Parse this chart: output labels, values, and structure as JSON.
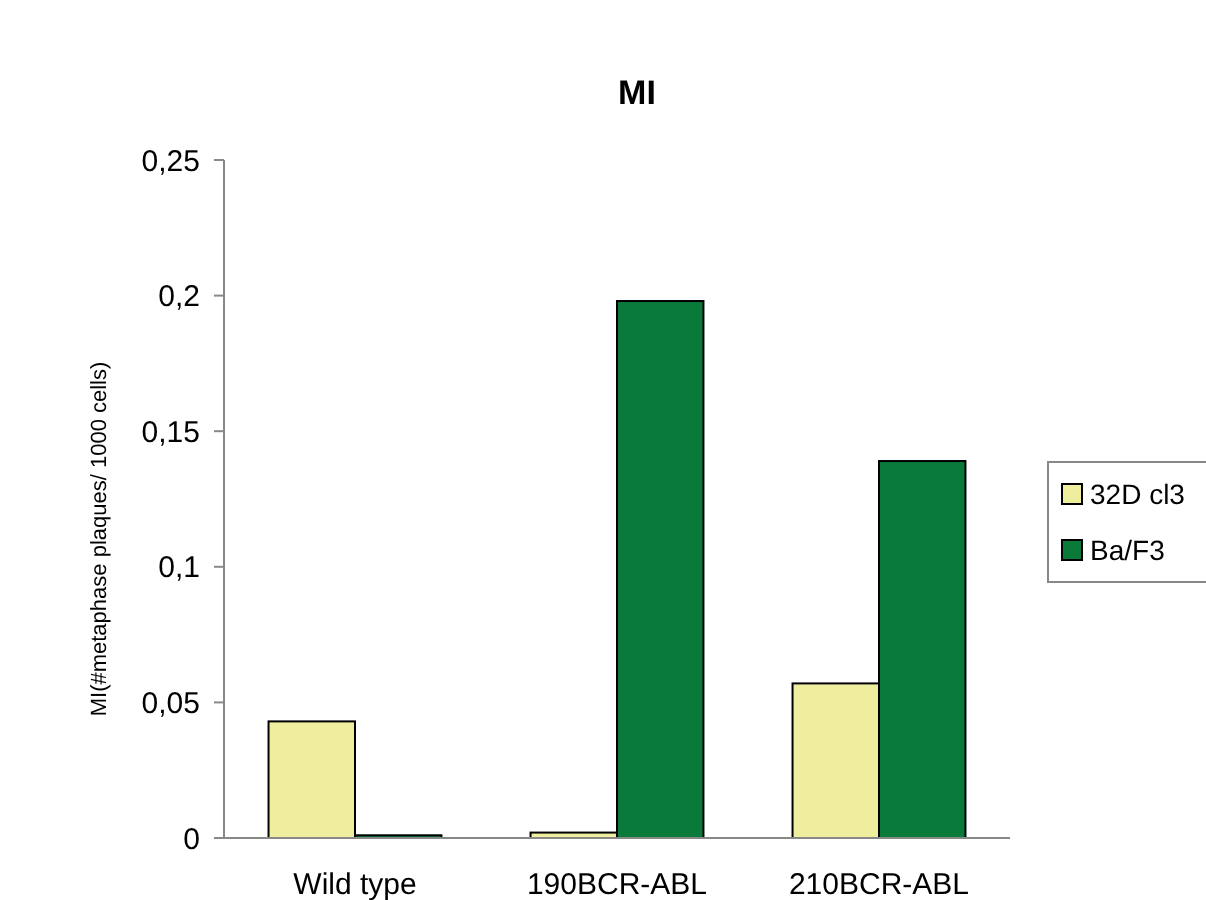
{
  "chart_data": {
    "type": "bar",
    "title": "MI",
    "ylabel": "MI(#metaphase plaques/ 1000 cells)",
    "categories": [
      "Wild type",
      "190BCR-ABL",
      "210BCR-ABL"
    ],
    "series": [
      {
        "name": "32D cl3",
        "color": "#eeee9e",
        "values": [
          0.043,
          0.002,
          0.057
        ]
      },
      {
        "name": "Ba/F3",
        "color": "#0a7a3a",
        "values": [
          0.001,
          0.198,
          0.139
        ]
      }
    ],
    "ylim": [
      0,
      0.25
    ],
    "yticks": [
      {
        "value": 0,
        "label": "0"
      },
      {
        "value": 0.05,
        "label": "0,05"
      },
      {
        "value": 0.1,
        "label": "0,1"
      },
      {
        "value": 0.15,
        "label": "0,15"
      },
      {
        "value": 0.2,
        "label": "0,2"
      },
      {
        "value": 0.25,
        "label": "0,25"
      }
    ],
    "grid": false,
    "legend": "right"
  }
}
